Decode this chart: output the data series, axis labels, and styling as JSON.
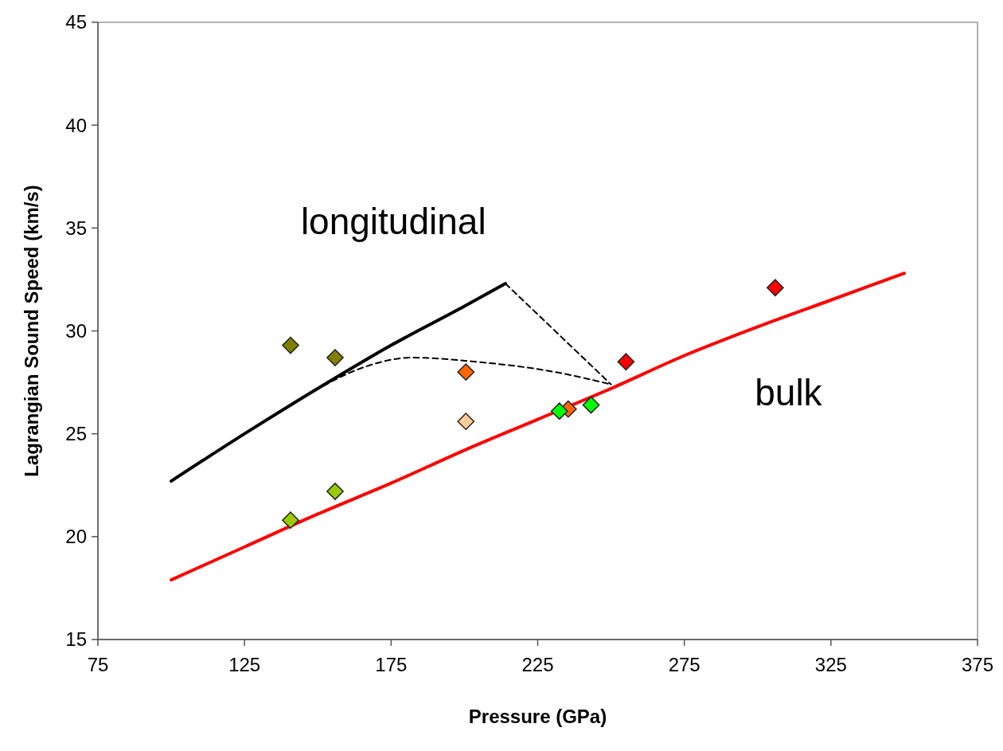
{
  "chart_data": {
    "type": "scatter",
    "xlabel": "Pressure (GPa)",
    "ylabel": "Lagrangian Sound Speed (km/s)",
    "xlim": [
      75,
      375
    ],
    "xticks": [
      75,
      125,
      175,
      225,
      275,
      325,
      375
    ],
    "ylim": [
      15,
      45
    ],
    "yticks": [
      15,
      20,
      25,
      30,
      35,
      40,
      45
    ],
    "series": [
      {
        "type": "line",
        "marker": "none",
        "color": "#000000",
        "x": [
          100,
          125,
          150,
          175,
          200,
          214
        ],
        "values": [
          22.7,
          25.0,
          27.2,
          29.3,
          31.2,
          32.3
        ],
        "line_style": "solid"
      },
      {
        "type": "line",
        "marker": "none",
        "color": "#ff0000",
        "x": [
          100,
          125,
          150,
          175,
          200,
          225,
          250,
          275,
          300,
          325,
          350
        ],
        "values": [
          17.9,
          19.5,
          21.1,
          22.6,
          24.2,
          25.7,
          27.2,
          28.8,
          30.2,
          31.5,
          32.8
        ],
        "line_style": "solid"
      },
      {
        "type": "line",
        "marker": "none",
        "color": "#000000",
        "x": [
          214,
          250
        ],
        "values": [
          32.3,
          27.4
        ],
        "line_style": "dashed"
      },
      {
        "type": "line",
        "marker": "none",
        "color": "#000000",
        "x": [
          149,
          165,
          182,
          204,
          231,
          250
        ],
        "values": [
          27.1,
          28.2,
          28.7,
          28.5,
          28.0,
          27.4
        ],
        "line_style": "dashed"
      },
      {
        "marker": "diamond",
        "color": "#808000",
        "x": [
          140.7,
          155.9
        ],
        "values": [
          29.3,
          28.7
        ]
      },
      {
        "marker": "diamond",
        "color": "#99cc00",
        "x": [
          140.7,
          155.9
        ],
        "values": [
          20.8,
          22.2
        ]
      },
      {
        "marker": "diamond",
        "color": "#ff6600",
        "x": [
          200.5,
          235.4
        ],
        "values": [
          28.0,
          26.2
        ]
      },
      {
        "marker": "diamond",
        "color": "#ffcc99",
        "x": [
          200.5
        ],
        "values": [
          25.6
        ]
      },
      {
        "marker": "diamond",
        "color": "#00ff00",
        "x": [
          232.4,
          243.2
        ],
        "values": [
          26.1,
          26.4
        ]
      },
      {
        "marker": "diamond",
        "color": "#ff0000",
        "x": [
          255.1,
          306.0
        ],
        "values": [
          28.5,
          32.1
        ]
      }
    ],
    "annotations": [
      "longitudinal",
      "bulk"
    ]
  }
}
